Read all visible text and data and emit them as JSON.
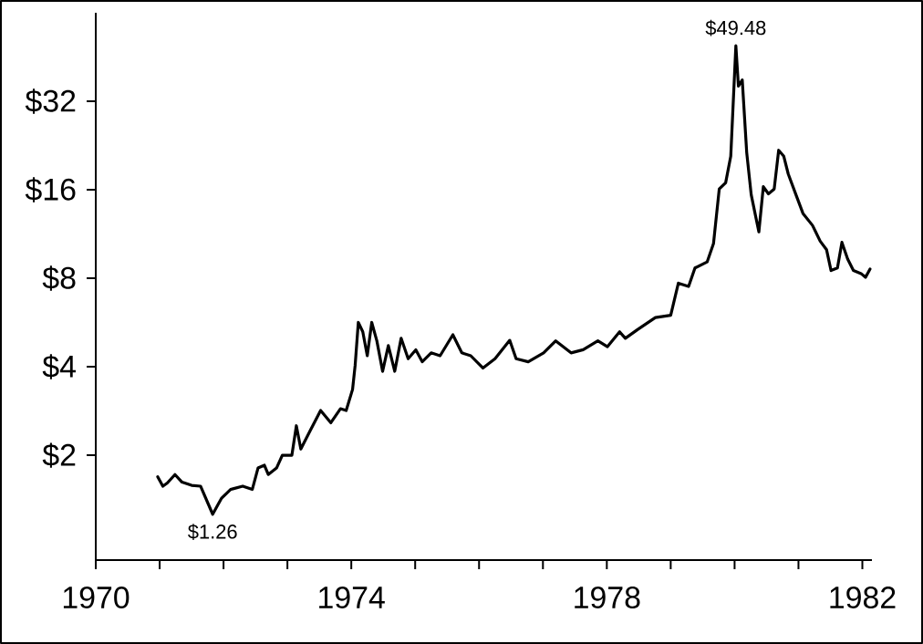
{
  "chart_data": {
    "type": "line",
    "color": "#000000",
    "log": "y",
    "grid": false,
    "marker": "none",
    "line_style": "solid",
    "x": [
      1970.97,
      1971.05,
      1971.12,
      1971.24,
      1971.35,
      1971.5,
      1971.64,
      1971.83,
      1971.97,
      1972.11,
      1972.3,
      1972.45,
      1972.54,
      1972.64,
      1972.7,
      1972.83,
      1972.92,
      1973.07,
      1973.14,
      1973.21,
      1973.35,
      1973.52,
      1973.68,
      1973.83,
      1973.92,
      1974.02,
      1974.06,
      1974.11,
      1974.18,
      1974.25,
      1974.32,
      1974.4,
      1974.49,
      1974.58,
      1974.68,
      1974.78,
      1974.89,
      1975.01,
      1975.11,
      1975.25,
      1975.39,
      1975.59,
      1975.73,
      1975.87,
      1976.06,
      1976.25,
      1976.48,
      1976.58,
      1976.77,
      1977.01,
      1977.2,
      1977.44,
      1977.63,
      1977.86,
      1978.01,
      1978.2,
      1978.29,
      1978.48,
      1978.76,
      1979.0,
      1979.12,
      1979.28,
      1979.38,
      1979.57,
      1979.67,
      1979.76,
      1979.86,
      1979.94,
      1980.02,
      1980.06,
      1980.12,
      1980.19,
      1980.26,
      1980.32,
      1980.38,
      1980.45,
      1980.53,
      1980.62,
      1980.69,
      1980.77,
      1980.84,
      1980.96,
      1981.07,
      1981.22,
      1981.34,
      1981.44,
      1981.51,
      1981.61,
      1981.68,
      1981.77,
      1981.86,
      1981.98,
      1982.05,
      1982.12
    ],
    "values": [
      1.69,
      1.57,
      1.61,
      1.72,
      1.62,
      1.58,
      1.57,
      1.26,
      1.43,
      1.53,
      1.57,
      1.53,
      1.81,
      1.85,
      1.72,
      1.81,
      2.0,
      2.0,
      2.52,
      2.1,
      2.41,
      2.84,
      2.58,
      2.88,
      2.84,
      3.35,
      4.04,
      5.66,
      5.26,
      4.36,
      5.66,
      4.9,
      3.86,
      4.72,
      3.86,
      5.0,
      4.26,
      4.57,
      4.16,
      4.46,
      4.36,
      5.14,
      4.46,
      4.36,
      3.96,
      4.26,
      4.92,
      4.26,
      4.16,
      4.46,
      4.9,
      4.46,
      4.57,
      4.9,
      4.68,
      5.26,
      5.0,
      5.35,
      5.88,
      5.99,
      7.7,
      7.5,
      8.67,
      9.09,
      10.5,
      16.1,
      16.9,
      20.8,
      49.48,
      36,
      37.8,
      21.4,
      15.4,
      13.3,
      11.5,
      16.4,
      15.5,
      16.1,
      21.8,
      20.8,
      18.1,
      15.4,
      13.3,
      12.1,
      10.7,
      10.0,
      8.5,
      8.67,
      10.6,
      9.3,
      8.5,
      8.3,
      8.06,
      8.6
    ],
    "xlim": [
      1970,
      1982.15
    ],
    "xticks": [
      1970,
      {
        "value": 1971,
        "label": null
      },
      {
        "value": 1972,
        "label": null
      },
      {
        "value": 1973,
        "label": null
      },
      1974,
      {
        "value": 1975,
        "label": null
      },
      {
        "value": 1976,
        "label": null
      },
      {
        "value": 1977,
        "label": null
      },
      1978,
      {
        "value": 1979,
        "label": null
      },
      {
        "value": 1980,
        "label": null
      },
      {
        "value": 1981,
        "label": null
      },
      1982
    ],
    "ylim": [
      0.88,
      64
    ],
    "yticks": [
      {
        "value": 2,
        "label": "$2"
      },
      {
        "value": 4,
        "label": "$4"
      },
      {
        "value": 8,
        "label": "$8"
      },
      {
        "value": 16,
        "label": "$16"
      },
      {
        "value": 32,
        "label": "$32"
      }
    ],
    "annotations": [
      {
        "text": "$49.48",
        "x": 1980.02,
        "y": 49.48
      },
      {
        "text": "$1.26",
        "x": 1971.83,
        "y": 1.26
      }
    ]
  }
}
